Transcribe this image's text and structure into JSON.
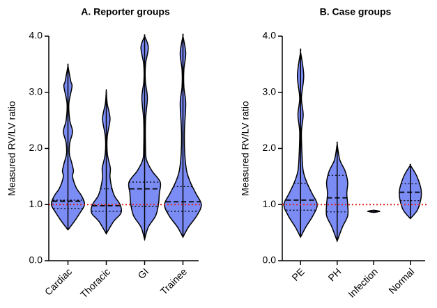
{
  "chart_data": [
    {
      "type": "violin",
      "title": "A. Reporter groups",
      "ylabel": "Measured RV/LV ratio",
      "ylim": [
        0,
        4
      ],
      "yticks": [
        {
          "value": 0,
          "label": "0.0"
        },
        {
          "value": 1,
          "label": "1.0"
        },
        {
          "value": 2,
          "label": "2.0"
        },
        {
          "value": 3,
          "label": "3.0"
        },
        {
          "value": 4,
          "label": "4.0"
        }
      ],
      "reference_line": 1,
      "reference_color": "#e02020",
      "color": "#7b8cf5",
      "categories": [
        "Cardiac",
        "Thoracic",
        "GI",
        "Trainee"
      ],
      "series": [
        {
          "min": 0.55,
          "q1": 0.93,
          "median": 1.06,
          "q3": 1.08,
          "max": 3.47,
          "density": {
            "y": [
              0.55,
              0.7,
              0.85,
              1.0,
              1.15,
              1.3,
              1.5,
              1.6,
              1.75,
              1.9,
              2.1,
              2.3,
              2.5,
              2.8,
              3.1,
              3.2,
              3.47
            ],
            "width": [
              0,
              0.35,
              0.65,
              0.9,
              0.75,
              0.45,
              0.25,
              0.3,
              0.2,
              0.08,
              0.1,
              0.25,
              0.1,
              0.05,
              0.22,
              0.15,
              0
            ]
          }
        },
        {
          "min": 0.48,
          "q1": 0.88,
          "median": 0.98,
          "q3": 1.28,
          "max": 3.02,
          "density": {
            "y": [
              0.48,
              0.7,
              0.85,
              1.0,
              1.15,
              1.3,
              1.5,
              1.65,
              1.9,
              2.2,
              2.5,
              2.65,
              2.8,
              3.02
            ],
            "width": [
              0,
              0.4,
              0.8,
              0.75,
              0.45,
              0.3,
              0.2,
              0.22,
              0.06,
              0.05,
              0.2,
              0.15,
              0.05,
              0
            ]
          }
        },
        {
          "min": 0.38,
          "q1": 0.97,
          "median": 1.28,
          "q3": 1.4,
          "max": 4.0,
          "density": {
            "y": [
              0.38,
              0.6,
              0.8,
              1.0,
              1.2,
              1.4,
              1.6,
              1.8,
              2.0,
              2.5,
              2.9,
              3.2,
              3.5,
              3.8,
              4.0
            ],
            "width": [
              0,
              0.2,
              0.6,
              0.75,
              0.8,
              0.85,
              0.4,
              0.1,
              0.05,
              0.05,
              0.15,
              0.04,
              0.05,
              0.2,
              0
            ]
          }
        },
        {
          "min": 0.42,
          "q1": 0.88,
          "median": 1.05,
          "q3": 1.32,
          "max": 4.0,
          "density": {
            "y": [
              0.42,
              0.6,
              0.8,
              1.0,
              1.2,
              1.4,
              1.6,
              1.9,
              2.3,
              2.8,
              3.1,
              3.4,
              3.7,
              4.0
            ],
            "width": [
              0,
              0.3,
              0.75,
              1.0,
              0.7,
              0.4,
              0.2,
              0.1,
              0.08,
              0.15,
              0.05,
              0.05,
              0.15,
              0
            ]
          }
        }
      ]
    },
    {
      "type": "violin",
      "title": "B. Case groups",
      "ylabel": "Measured RV/LV ratio",
      "ylim": [
        0,
        4
      ],
      "yticks": [
        {
          "value": 0,
          "label": "0.0"
        },
        {
          "value": 1,
          "label": "1.0"
        },
        {
          "value": 2,
          "label": "2.0"
        },
        {
          "value": 3,
          "label": "3.0"
        },
        {
          "value": 4,
          "label": "4.0"
        }
      ],
      "reference_line": 1,
      "reference_color": "#e02020",
      "color": "#7b8cf5",
      "categories": [
        "PE",
        "PH",
        "Infection",
        "Normal"
      ],
      "series": [
        {
          "min": 0.42,
          "q1": 0.9,
          "median": 1.08,
          "q3": 1.38,
          "max": 3.72,
          "density": {
            "y": [
              0.42,
              0.6,
              0.8,
              1.0,
              1.2,
              1.4,
              1.6,
              1.9,
              2.3,
              2.6,
              2.9,
              3.3,
              3.72
            ],
            "width": [
              0,
              0.3,
              0.7,
              0.95,
              0.65,
              0.35,
              0.15,
              0.08,
              0.05,
              0.15,
              0.05,
              0.18,
              0
            ]
          }
        },
        {
          "min": 0.35,
          "q1": 0.87,
          "median": 1.12,
          "q3": 1.52,
          "max": 2.08,
          "density": {
            "y": [
              0.35,
              0.6,
              0.8,
              1.0,
              1.2,
              1.4,
              1.6,
              1.8,
              2.08
            ],
            "width": [
              0,
              0.3,
              0.6,
              0.6,
              0.55,
              0.6,
              0.45,
              0.15,
              0
            ]
          }
        },
        {
          "min": 0.86,
          "q1": 0.87,
          "median": 0.88,
          "q3": 0.89,
          "max": 0.9,
          "density": {
            "y": [
              0.86,
              0.88,
              0.9
            ],
            "width": [
              0,
              0.35,
              0
            ]
          }
        },
        {
          "min": 0.75,
          "q1": 1.07,
          "median": 1.22,
          "q3": 1.37,
          "max": 1.7,
          "density": {
            "y": [
              0.75,
              0.9,
              1.1,
              1.25,
              1.4,
              1.55,
              1.7
            ],
            "width": [
              0,
              0.4,
              0.6,
              0.62,
              0.5,
              0.3,
              0
            ]
          }
        }
      ]
    }
  ]
}
